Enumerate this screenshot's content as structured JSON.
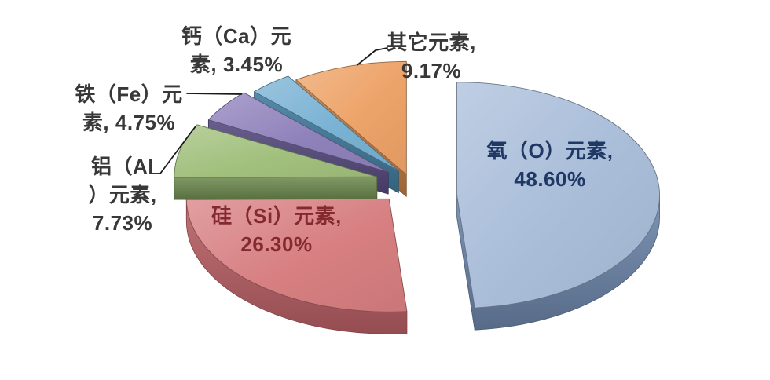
{
  "chart_data": {
    "type": "pie",
    "style": "3d-exploded",
    "title": "",
    "unit": "%",
    "legend": "none",
    "slices": [
      {
        "name": "oxygen",
        "label": "氧（O）元素",
        "value": 48.6,
        "display": "氧（O）元素, 48.60%",
        "color": "#A9BDD9",
        "side_color": "#6D86AB",
        "text_color": "#1F3864",
        "label_placement": "inside"
      },
      {
        "name": "silicon",
        "label": "硅（Si）元素",
        "value": 26.3,
        "display": "硅（Si）元素, 26.30%",
        "color": "#D77F81",
        "side_color": "#BA6065",
        "text_color": "#84292F",
        "label_placement": "inside"
      },
      {
        "name": "aluminum",
        "label": "铝（Al）元素",
        "value": 7.73,
        "display": "铝（Al）元素, 7.73%",
        "color": "#A2C07D",
        "side_color": "#6F8B50",
        "text_color": "#383838",
        "label_placement": "outside"
      },
      {
        "name": "iron",
        "label": "铁（Fe）元素",
        "value": 4.75,
        "display": "铁（Fe）元素, 4.75%",
        "color": "#8F82BB",
        "side_color": "#55497D",
        "text_color": "#383838",
        "label_placement": "outside"
      },
      {
        "name": "calcium",
        "label": "钙（Ca）元素",
        "value": 3.45,
        "display": "钙（Ca）元素, 3.45%",
        "color": "#79B2D3",
        "side_color": "#3F7B9D",
        "text_color": "#383838",
        "label_placement": "outside"
      },
      {
        "name": "other",
        "label": "其它元素",
        "value": 9.17,
        "display": "其它元素, 9.17%",
        "color": "#EDA368",
        "side_color": "#C07D42",
        "text_color": "#383838",
        "label_placement": "outside"
      }
    ],
    "layout_hints": {
      "start_angle_deg": 0,
      "clockwise": true,
      "exploded": true,
      "grid": false,
      "legend_position": "none"
    }
  },
  "labels": {
    "o": {
      "line1": "氧（O）元素,",
      "line2": "48.60%"
    },
    "si": {
      "line1": "硅（Si）元素,",
      "line2": "26.30%"
    },
    "al": {
      "line1": "铝（Al",
      "line2": "）元素,",
      "line3": "7.73%"
    },
    "fe": {
      "line1": "铁（Fe）元",
      "line2": "素, 4.75%"
    },
    "ca": {
      "line1": "钙（Ca）元",
      "line2": "素, 3.45%"
    },
    "other": {
      "line1": "其它元素,",
      "line2": "9.17%"
    }
  },
  "colors": {
    "background": "#FFFFFF",
    "label_text": "#383838",
    "leader_line": "#1A1A1A"
  }
}
